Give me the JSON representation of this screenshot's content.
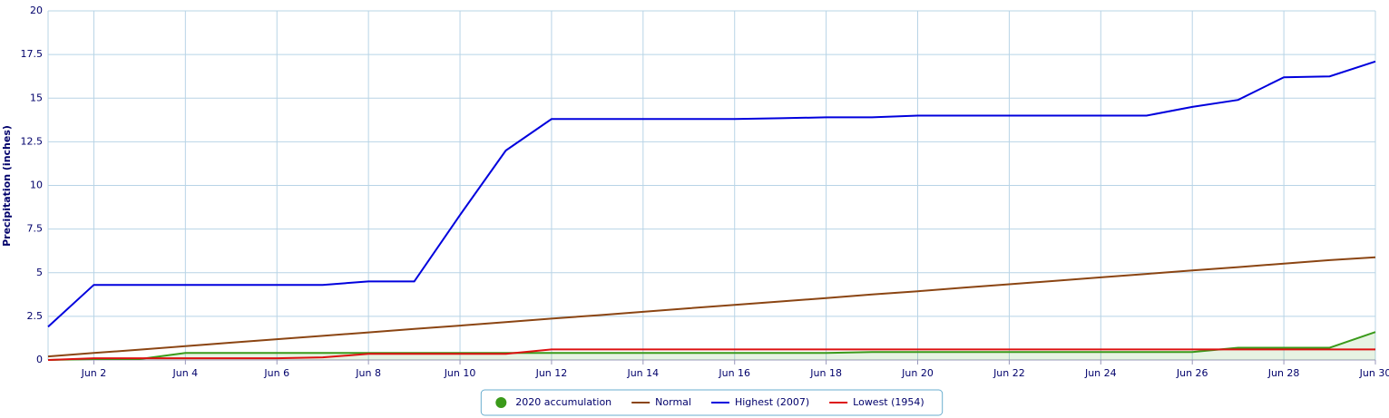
{
  "chart_data": {
    "type": "line",
    "y_label": "Precipitation (inches)",
    "categories": [
      null,
      "Jun 2",
      null,
      "Jun 4",
      null,
      "Jun 6",
      null,
      "Jun 8",
      null,
      "Jun 10",
      null,
      "Jun 12",
      null,
      "Jun 14",
      null,
      "Jun 16",
      null,
      "Jun 18",
      null,
      "Jun 20",
      null,
      "Jun 22",
      null,
      "Jun 24",
      null,
      "Jun 26",
      null,
      "Jun 28",
      null,
      "Jun 30"
    ],
    "ylim": [
      0,
      20
    ],
    "yticks": [
      0,
      2.5,
      5,
      7.5,
      10,
      12.5,
      15,
      17.5,
      20
    ],
    "grid": true,
    "series": [
      {
        "name": "2020 accumulation",
        "color": "#3a9a1a",
        "area": true,
        "values": [
          0,
          0.05,
          0.05,
          0.4,
          0.4,
          0.4,
          0.4,
          0.4,
          0.4,
          0.4,
          0.4,
          0.4,
          0.4,
          0.4,
          0.4,
          0.4,
          0.4,
          0.4,
          0.45,
          0.45,
          0.45,
          0.45,
          0.45,
          0.45,
          0.45,
          0.45,
          0.7,
          0.7,
          0.7,
          1.6
        ]
      },
      {
        "name": "Normal",
        "color": "#8b4513",
        "values": [
          0.2,
          0.4,
          0.59,
          0.79,
          0.99,
          1.19,
          1.38,
          1.58,
          1.78,
          1.97,
          2.17,
          2.37,
          2.56,
          2.76,
          2.96,
          3.16,
          3.35,
          3.55,
          3.75,
          3.94,
          4.14,
          4.34,
          4.53,
          4.73,
          4.93,
          5.13,
          5.32,
          5.52,
          5.72,
          5.88
        ]
      },
      {
        "name": "Highest (2007)",
        "color": "#0000dd",
        "values": [
          1.9,
          4.3,
          4.3,
          4.3,
          4.3,
          4.3,
          4.3,
          4.5,
          4.5,
          8.3,
          12.0,
          13.8,
          13.8,
          13.8,
          13.8,
          13.8,
          13.85,
          13.9,
          13.9,
          14.0,
          14.0,
          14.0,
          14.0,
          14.0,
          14.0,
          14.5,
          14.9,
          16.2,
          16.25,
          17.1
        ]
      },
      {
        "name": "Lowest (1954)",
        "color": "#dd1111",
        "values": [
          0,
          0.1,
          0.1,
          0.1,
          0.1,
          0.1,
          0.15,
          0.35,
          0.35,
          0.35,
          0.35,
          0.6,
          0.6,
          0.6,
          0.6,
          0.6,
          0.6,
          0.6,
          0.6,
          0.6,
          0.6,
          0.6,
          0.6,
          0.6,
          0.6,
          0.6,
          0.6,
          0.6,
          0.6,
          0.6
        ]
      }
    ]
  }
}
